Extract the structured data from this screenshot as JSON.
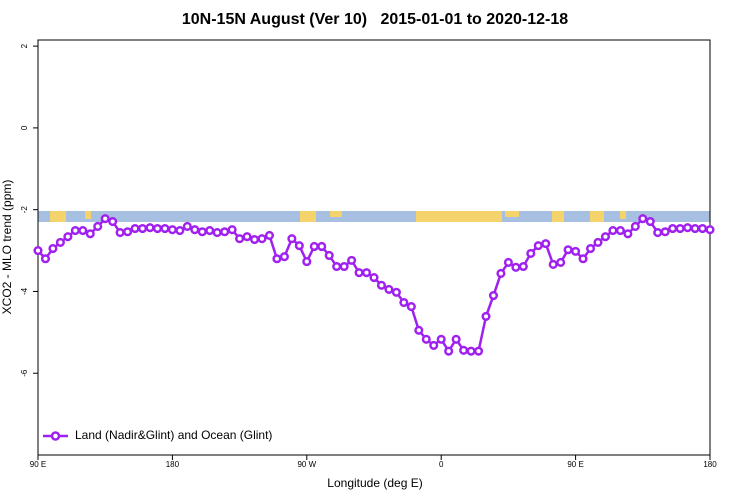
{
  "chart_data": {
    "type": "line",
    "title": "10N-15N August (Ver 10)   2015-01-01 to 2020-12-18",
    "x_label": "Longitude (deg E)",
    "y_label": "XCO2 - MLO trend (ppm)",
    "x": [
      90,
      95,
      100,
      105,
      110,
      115,
      120,
      125,
      130,
      135,
      140,
      145,
      150,
      155,
      160,
      165,
      170,
      175,
      180,
      185,
      190,
      195,
      200,
      205,
      210,
      215,
      220,
      225,
      230,
      235,
      240,
      245,
      250,
      255,
      260,
      265,
      270,
      275,
      280,
      285,
      290,
      295,
      300,
      305,
      310,
      315,
      320,
      325,
      330,
      335,
      340,
      345,
      350,
      355,
      360,
      365,
      370,
      375,
      380,
      385,
      390,
      395,
      400,
      405,
      410,
      415,
      420,
      425,
      430,
      435,
      440,
      445,
      450,
      455,
      460,
      465,
      470,
      475,
      480,
      485,
      490,
      495,
      500,
      505,
      510,
      515,
      520,
      525,
      530,
      535,
      540
    ],
    "series": [
      {
        "name": "Land (Nadir&Glint) and Ocean (Glint)",
        "color": "#a020f0",
        "values": [
          -3.0,
          -3.2,
          -2.95,
          -2.8,
          -2.66,
          -2.51,
          -2.51,
          -2.59,
          -2.41,
          -2.22,
          -2.29,
          -2.56,
          -2.54,
          -2.46,
          -2.46,
          -2.44,
          -2.46,
          -2.46,
          -2.49,
          -2.51,
          -2.41,
          -2.49,
          -2.54,
          -2.51,
          -2.56,
          -2.54,
          -2.49,
          -2.71,
          -2.66,
          -2.73,
          -2.71,
          -2.63,
          -3.2,
          -3.15,
          -2.71,
          -2.88,
          -3.27,
          -2.9,
          -2.9,
          -3.12,
          -3.39,
          -3.39,
          -3.24,
          -3.54,
          -3.54,
          -3.66,
          -3.85,
          -3.95,
          -4.02,
          -4.27,
          -4.37,
          -4.95,
          -5.17,
          -5.32,
          -5.17,
          -5.46,
          -5.17,
          -5.44,
          -5.46,
          -5.46,
          -4.61,
          -4.1,
          -3.56,
          -3.29,
          -3.41,
          -3.39,
          -3.07,
          -2.88,
          -2.83,
          -3.34,
          -3.29,
          -2.98,
          -3.02,
          -3.2,
          -2.95,
          -2.8,
          -2.66,
          -2.51,
          -2.51,
          -2.59,
          -2.41,
          -2.22,
          -2.29,
          -2.56,
          -2.54,
          -2.46,
          -2.46,
          -2.44,
          -2.46,
          -2.46,
          -2.49
        ]
      }
    ],
    "xlim": [
      90,
      540
    ],
    "xticks": [
      {
        "value": 90,
        "label": "90 E"
      },
      180,
      {
        "value": 270,
        "label": "90 W"
      },
      {
        "value": 360,
        "label": "0"
      },
      {
        "value": 450,
        "label": "90 E"
      },
      {
        "value": 540,
        "label": "180"
      }
    ],
    "ylim": [
      -8,
      2.15
    ],
    "yticks": [
      2,
      0,
      -2,
      -4,
      -6
    ],
    "legend": "bottom left"
  }
}
